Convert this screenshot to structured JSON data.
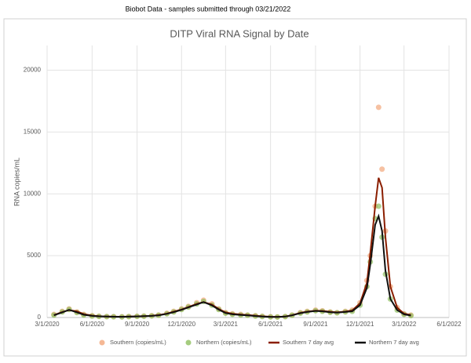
{
  "header": "Biobot Data - samples submitted through 03/21/2022",
  "chart_data": {
    "type": "scatter",
    "title": "DITP Viral RNA Signal by Date",
    "y_label": "RNA copies/mL",
    "x": [
      "2020-03-15",
      "2020-04-01",
      "2020-04-15",
      "2020-05-01",
      "2020-05-15",
      "2020-06-01",
      "2020-06-15",
      "2020-07-01",
      "2020-07-15",
      "2020-08-01",
      "2020-08-15",
      "2020-09-01",
      "2020-09-15",
      "2020-10-01",
      "2020-10-15",
      "2020-11-01",
      "2020-11-15",
      "2020-12-01",
      "2020-12-15",
      "2021-01-01",
      "2021-01-15",
      "2021-02-01",
      "2021-02-15",
      "2021-03-01",
      "2021-03-15",
      "2021-04-01",
      "2021-04-15",
      "2021-05-01",
      "2021-05-15",
      "2021-06-01",
      "2021-06-15",
      "2021-07-01",
      "2021-07-15",
      "2021-08-01",
      "2021-08-15",
      "2021-09-01",
      "2021-09-15",
      "2021-10-01",
      "2021-10-15",
      "2021-11-01",
      "2021-11-15",
      "2021-12-01",
      "2021-12-15",
      "2021-12-22",
      "2022-01-01",
      "2022-01-08",
      "2022-01-15",
      "2022-01-22",
      "2022-02-01",
      "2022-02-15",
      "2022-03-01",
      "2022-03-15"
    ],
    "series": [
      {
        "name": "Southern (copies/mL)",
        "mode": "markers",
        "color": "#f2a67a",
        "values": [
          250,
          500,
          700,
          450,
          250,
          150,
          100,
          80,
          70,
          60,
          80,
          100,
          120,
          150,
          200,
          350,
          500,
          700,
          900,
          1200,
          1400,
          1100,
          700,
          400,
          300,
          250,
          200,
          150,
          100,
          60,
          50,
          80,
          200,
          400,
          500,
          600,
          550,
          450,
          400,
          500,
          600,
          1200,
          3000,
          5000,
          9000,
          17000,
          12000,
          7000,
          2500,
          800,
          300,
          200
        ]
      },
      {
        "name": "Northern (copies/mL)",
        "mode": "markers",
        "color": "#8fbf5f",
        "values": [
          200,
          450,
          650,
          400,
          200,
          120,
          90,
          70,
          60,
          50,
          70,
          90,
          100,
          130,
          180,
          300,
          450,
          650,
          850,
          1100,
          1300,
          1000,
          650,
          350,
          250,
          200,
          180,
          120,
          80,
          50,
          40,
          70,
          180,
          350,
          450,
          550,
          500,
          420,
          380,
          450,
          500,
          1000,
          2500,
          4500,
          8000,
          9000,
          6500,
          3500,
          1500,
          600,
          250,
          150
        ]
      },
      {
        "name": "Southern 7 day avg",
        "mode": "lines",
        "color": "#8b1e00",
        "values": [
          200,
          450,
          600,
          500,
          280,
          160,
          110,
          85,
          70,
          65,
          75,
          95,
          115,
          140,
          200,
          320,
          480,
          650,
          850,
          1100,
          1250,
          1050,
          700,
          420,
          310,
          250,
          200,
          150,
          100,
          65,
          55,
          85,
          190,
          380,
          480,
          560,
          540,
          470,
          420,
          480,
          580,
          1150,
          2800,
          5200,
          9000,
          11300,
          10500,
          6500,
          2500,
          800,
          320,
          210
        ]
      },
      {
        "name": "Northern 7 day avg",
        "mode": "lines",
        "color": "#111111",
        "values": [
          180,
          420,
          620,
          420,
          220,
          130,
          95,
          75,
          62,
          55,
          70,
          90,
          105,
          130,
          180,
          300,
          440,
          620,
          820,
          1050,
          1250,
          980,
          640,
          360,
          260,
          210,
          175,
          120,
          85,
          52,
          45,
          75,
          180,
          350,
          450,
          530,
          500,
          430,
          390,
          450,
          510,
          1000,
          2400,
          4300,
          7500,
          8200,
          7000,
          3800,
          1500,
          600,
          260,
          160
        ]
      }
    ],
    "xlim": [
      "2020-03-01",
      "2022-06-01"
    ],
    "xticks": [
      {
        "value": "2020-03-01",
        "label": "3/1/2020"
      },
      {
        "value": "2020-06-01",
        "label": "6/1/2020"
      },
      {
        "value": "2020-09-01",
        "label": "9/1/2020"
      },
      {
        "value": "2020-12-01",
        "label": "12/1/2020"
      },
      {
        "value": "2021-03-01",
        "label": "3/1/2021"
      },
      {
        "value": "2021-06-01",
        "label": "6/1/2021"
      },
      {
        "value": "2021-09-01",
        "label": "9/1/2021"
      },
      {
        "value": "2021-12-01",
        "label": "12/1/2021"
      },
      {
        "value": "2022-03-01",
        "label": "3/1/2022"
      },
      {
        "value": "2022-06-01",
        "label": "6/1/2022"
      }
    ],
    "ylim": [
      0,
      22000
    ],
    "yticks": [
      0,
      5000,
      10000,
      15000,
      20000
    ],
    "grid": true,
    "legend": "bottom"
  }
}
